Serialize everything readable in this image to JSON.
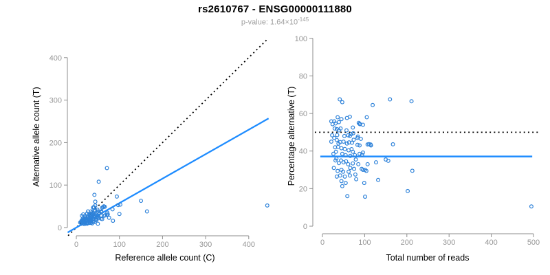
{
  "header": {
    "title": "rs2610767 - ENSG00000111880",
    "pvalue": {
      "prefix": "p-value: 1.64×10",
      "exponent": "-145"
    }
  },
  "colors": {
    "point": "#2e82d9",
    "fit_line": "#1e8cff",
    "reference_line": "#000000",
    "axis": "#8c8c8c",
    "tick_label": "#969696",
    "axis_title": "#000000",
    "subtitle": "#9e9e9e"
  },
  "chart_data": [
    {
      "type": "scatter",
      "name": "allele-count-scatter",
      "xlabel": "Reference allele count (C)",
      "ylabel": "Alternative allele count (T)",
      "xlim": [
        0,
        450
      ],
      "ylim": [
        0,
        445
      ],
      "xticks": [
        0,
        100,
        200,
        300,
        400
      ],
      "yticks": [
        0,
        100,
        200,
        300,
        400
      ],
      "grid": false,
      "lines": [
        {
          "name": "identity-line",
          "style": "dotted",
          "color": "#000000",
          "slope": 1,
          "intercept": 0,
          "x_range": [
            -19,
            445
          ],
          "width": 1.8
        },
        {
          "name": "regression-line",
          "style": "solid",
          "color": "#1e8cff",
          "slope": 0.576,
          "intercept": 0,
          "x_range": [
            -20,
            446
          ],
          "width": 2.3
        }
      ],
      "points": [
        [
          443,
          52
        ],
        [
          71,
          140
        ],
        [
          150,
          63
        ],
        [
          164,
          38
        ],
        [
          94,
          73
        ],
        [
          52,
          108
        ],
        [
          102,
          54
        ],
        [
          97,
          53
        ],
        [
          100,
          32
        ],
        [
          84,
          43
        ],
        [
          42,
          77
        ],
        [
          66,
          49
        ],
        [
          64,
          50
        ],
        [
          62,
          48
        ],
        [
          60,
          47
        ],
        [
          72,
          35
        ],
        [
          44,
          61
        ],
        [
          73,
          31
        ],
        [
          71,
          30
        ],
        [
          85,
          16
        ],
        [
          76,
          23
        ],
        [
          44,
          52
        ],
        [
          58,
          38
        ],
        [
          67,
          29
        ],
        [
          58,
          36
        ],
        [
          65,
          28
        ],
        [
          49,
          42
        ],
        [
          41,
          48
        ],
        [
          40,
          48
        ],
        [
          50,
          38
        ],
        [
          54,
          34
        ],
        [
          39,
          47
        ],
        [
          57,
          28
        ],
        [
          44,
          40
        ],
        [
          44,
          39
        ],
        [
          47,
          36
        ],
        [
          60,
          20
        ],
        [
          51,
          28
        ],
        [
          57,
          21
        ],
        [
          48,
          29
        ],
        [
          52,
          23
        ],
        [
          40,
          34
        ],
        [
          37,
          36
        ],
        [
          34,
          38
        ],
        [
          43,
          29
        ],
        [
          48,
          24
        ],
        [
          39,
          31
        ],
        [
          41,
          28
        ],
        [
          35,
          33
        ],
        [
          41,
          25
        ],
        [
          46,
          20
        ],
        [
          27,
          38
        ],
        [
          34,
          31
        ],
        [
          47,
          18
        ],
        [
          35,
          28
        ],
        [
          37,
          25
        ],
        [
          44,
          18
        ],
        [
          31,
          30
        ],
        [
          41,
          20
        ],
        [
          50,
          9
        ],
        [
          25,
          33
        ],
        [
          32,
          26
        ],
        [
          28,
          29
        ],
        [
          37,
          19
        ],
        [
          34,
          21
        ],
        [
          42,
          13
        ],
        [
          31,
          22
        ],
        [
          39,
          14
        ],
        [
          27,
          25
        ],
        [
          28,
          22
        ],
        [
          33,
          17
        ],
        [
          35,
          14
        ],
        [
          16,
          31
        ],
        [
          29,
          18
        ],
        [
          37,
          10
        ],
        [
          19,
          26
        ],
        [
          26,
          19
        ],
        [
          32,
          13
        ],
        [
          34,
          11
        ],
        [
          29,
          15
        ],
        [
          21,
          22
        ],
        [
          23,
          19
        ],
        [
          31,
          11
        ],
        [
          13,
          28
        ],
        [
          17,
          22
        ],
        [
          19,
          20
        ],
        [
          26,
          13
        ],
        [
          21,
          17
        ],
        [
          21,
          16
        ],
        [
          15,
          21
        ],
        [
          25,
          11
        ],
        [
          18,
          17
        ],
        [
          16,
          18
        ],
        [
          18,
          16
        ],
        [
          25,
          9
        ],
        [
          21,
          12
        ],
        [
          19,
          13
        ],
        [
          14,
          17
        ],
        [
          20,
          11
        ],
        [
          17,
          13
        ],
        [
          14,
          15
        ],
        [
          12,
          16
        ],
        [
          15,
          13
        ],
        [
          19,
          8
        ],
        [
          16,
          10
        ],
        [
          11,
          13
        ],
        [
          12,
          11
        ],
        [
          9,
          12
        ],
        [
          12,
          9
        ]
      ]
    },
    {
      "type": "scatter",
      "name": "percentage-scatter",
      "xlabel": "Total number of reads",
      "ylabel": "Percentage alternative (T)",
      "xlim": [
        0,
        515
      ],
      "ylim": [
        0,
        100
      ],
      "xticks": [
        0,
        100,
        200,
        300,
        400,
        500
      ],
      "yticks": [
        0,
        20,
        40,
        60,
        80,
        100
      ],
      "grid": false,
      "lines": [
        {
          "name": "expected-50pct-line",
          "style": "dotted",
          "color": "#000000",
          "y": 50,
          "x_range": [
            -18,
            516
          ],
          "width": 1.8
        },
        {
          "name": "mean-percentage-line",
          "style": "solid",
          "color": "#1e8cff",
          "y": 37.1,
          "x_range": [
            -5,
            497
          ],
          "width": 2.5
        }
      ],
      "points": [
        [
          495,
          10.5
        ],
        [
          211,
          66.5
        ],
        [
          213,
          29.5
        ],
        [
          202,
          18.7
        ],
        [
          167,
          43.6
        ],
        [
          160,
          67.5
        ],
        [
          156,
          34.8
        ],
        [
          150,
          35.5
        ],
        [
          132,
          24.6
        ],
        [
          127,
          34
        ],
        [
          119,
          64.5
        ],
        [
          115,
          43
        ],
        [
          114,
          43.5
        ],
        [
          110,
          43.7
        ],
        [
          107,
          43.5
        ],
        [
          107,
          33
        ],
        [
          105,
          58
        ],
        [
          104,
          29.4
        ],
        [
          101,
          30
        ],
        [
          101,
          15.7
        ],
        [
          99,
          23
        ],
        [
          96,
          54
        ],
        [
          96,
          39.2
        ],
        [
          96,
          30
        ],
        [
          94,
          38
        ],
        [
          93,
          30.5
        ],
        [
          91,
          46.5
        ],
        [
          89,
          54.3
        ],
        [
          88,
          54.5
        ],
        [
          88,
          43
        ],
        [
          88,
          38.5
        ],
        [
          86,
          55
        ],
        [
          85,
          33
        ],
        [
          84,
          47.7
        ],
        [
          83,
          47
        ],
        [
          83,
          43.3
        ],
        [
          80,
          25
        ],
        [
          79,
          35.5
        ],
        [
          78,
          27.5
        ],
        [
          77,
          37.8
        ],
        [
          75,
          30.5
        ],
        [
          74,
          46
        ],
        [
          73,
          49.5
        ],
        [
          72,
          52.5
        ],
        [
          72,
          39.6
        ],
        [
          72,
          33.4
        ],
        [
          70,
          44.4
        ],
        [
          69,
          41
        ],
        [
          68,
          49
        ],
        [
          66,
          37.4
        ],
        [
          66,
          31
        ],
        [
          65,
          58.3
        ],
        [
          65,
          48
        ],
        [
          65,
          27
        ],
        [
          63,
          44.6
        ],
        [
          62,
          40.4
        ],
        [
          62,
          29
        ],
        [
          61,
          48.4
        ],
        [
          61,
          33
        ],
        [
          59,
          16
        ],
        [
          58,
          57.6
        ],
        [
          58,
          44
        ],
        [
          57,
          51
        ],
        [
          56,
          34.5
        ],
        [
          55,
          37.8
        ],
        [
          55,
          23
        ],
        [
          53,
          41.1
        ],
        [
          53,
          26.4
        ],
        [
          52,
          48
        ],
        [
          50,
          45
        ],
        [
          50,
          34
        ],
        [
          49,
          29
        ],
        [
          47,
          66
        ],
        [
          47,
          38.5
        ],
        [
          47,
          21.3
        ],
        [
          45,
          57
        ],
        [
          45,
          41.5
        ],
        [
          45,
          30
        ],
        [
          45,
          24
        ],
        [
          44,
          35
        ],
        [
          43,
          52
        ],
        [
          42,
          44.8
        ],
        [
          42,
          27
        ],
        [
          41,
          67.5
        ],
        [
          39,
          55.4
        ],
        [
          39,
          51
        ],
        [
          39,
          33.6
        ],
        [
          38,
          44
        ],
        [
          37,
          42.2
        ],
        [
          36,
          58
        ],
        [
          36,
          29.4
        ],
        [
          35,
          48.5
        ],
        [
          34,
          51.7
        ],
        [
          34,
          45.9
        ],
        [
          34,
          26.4
        ],
        [
          33,
          36
        ],
        [
          32,
          39.6
        ],
        [
          31,
          54.7
        ],
        [
          31,
          35
        ],
        [
          30,
          42
        ],
        [
          29,
          52
        ],
        [
          28,
          55.8
        ],
        [
          28,
          47
        ],
        [
          27,
          31
        ],
        [
          26,
          38.5
        ],
        [
          24,
          54.3
        ],
        [
          23,
          48.4
        ],
        [
          21,
          55.8
        ],
        [
          21,
          45
        ]
      ]
    }
  ]
}
